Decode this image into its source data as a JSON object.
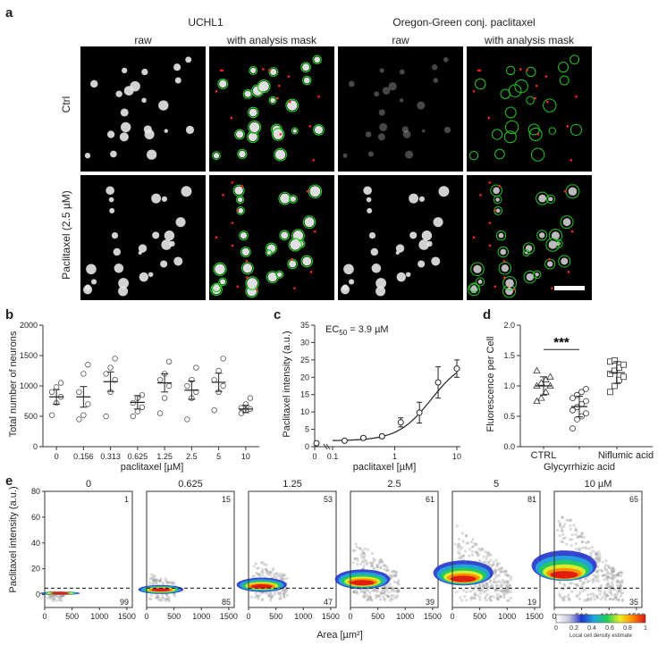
{
  "panel_labels": {
    "a": "a",
    "b": "b",
    "c": "c",
    "d": "d",
    "e": "e"
  },
  "panel_a": {
    "group_headers": [
      "UCHL1",
      "Oregon-Green conj. paclitaxel"
    ],
    "column_headers": [
      "raw",
      "with analysis mask",
      "raw",
      "with analysis mask"
    ],
    "row_labels": [
      "Ctrl",
      "Paclitaxel (2.5 µM)"
    ]
  },
  "chart_data": [
    {
      "id": "b",
      "type": "scatter",
      "ylabel": "Total number of neurons",
      "xlabel": "paclitaxel [µM]",
      "categories": [
        "0",
        "0.156",
        "0.313",
        "0.625",
        "1.25",
        "2.5",
        "5",
        "10"
      ],
      "ylim": [
        0,
        2000
      ],
      "yticks": [
        "0",
        "500",
        "1000",
        "1500",
        "2000"
      ],
      "points": [
        [
          520,
          720,
          820,
          900,
          980,
          1050
        ],
        [
          450,
          520,
          700,
          900,
          1200,
          1350
        ],
        [
          500,
          900,
          1100,
          1200,
          1300,
          1450
        ],
        [
          500,
          580,
          650,
          720,
          800,
          850
        ],
        [
          550,
          800,
          1000,
          1100,
          1200,
          1400
        ],
        [
          450,
          800,
          900,
          1000,
          1100,
          1300
        ],
        [
          600,
          900,
          1000,
          1100,
          1250,
          1450
        ],
        [
          550,
          600,
          620,
          640,
          700,
          800
        ]
      ],
      "mean": [
        820,
        820,
        1070,
        730,
        1050,
        930,
        1060,
        620
      ],
      "sem": [
        120,
        170,
        160,
        110,
        150,
        150,
        150,
        60
      ]
    },
    {
      "id": "c",
      "type": "line",
      "annotation_text": "EC",
      "annotation_sub": "50",
      "annotation_value": " = 3.9 µM",
      "ylabel": "Paclitaxel intensity (a.u.)",
      "xlabel": "paclitaxel [µM]",
      "xscale": "log",
      "xticks": [
        "0",
        "0.1",
        "1",
        "10"
      ],
      "ylim": [
        0,
        35
      ],
      "yticks": [
        "0",
        "5",
        "10",
        "15",
        "20",
        "25",
        "30",
        "35"
      ],
      "x": [
        0.156,
        0.313,
        0.625,
        1.25,
        2.5,
        5,
        10
      ],
      "y": [
        1.7,
        2.5,
        3.0,
        7.0,
        9.8,
        18.5,
        22.5
      ],
      "err": [
        0.3,
        0.5,
        0.5,
        1.3,
        3.0,
        4.5,
        2.5
      ],
      "zero_point": {
        "y": 1.0,
        "err": 0.3
      }
    },
    {
      "id": "d",
      "type": "scatter",
      "ylabel": "Fluorescence per Cell",
      "categories": [
        "CTRL",
        "Glycyrrhizic acid",
        "Niflumic acid"
      ],
      "ylim": [
        0,
        2.0
      ],
      "yticks": [
        "0.0",
        "0.5",
        "1.0",
        "1.5",
        "2.0"
      ],
      "significance": "***",
      "points": [
        [
          0.75,
          0.8,
          0.9,
          1.0,
          1.0,
          1.05,
          1.1,
          1.15,
          1.25
        ],
        [
          0.3,
          0.45,
          0.5,
          0.55,
          0.6,
          0.65,
          0.7,
          0.75,
          0.8,
          0.85,
          0.9,
          0.95
        ],
        [
          0.9,
          1.0,
          1.1,
          1.15,
          1.2,
          1.25,
          1.3,
          1.35,
          1.4,
          1.42
        ]
      ],
      "mean": [
        1.0,
        0.66,
        1.22
      ],
      "sd": [
        0.15,
        0.17,
        0.18
      ],
      "markers": [
        "triangle",
        "circle",
        "square"
      ]
    },
    {
      "id": "e",
      "type": "heatmap",
      "ylabel": "Paclitaxel intensity (a.u.)",
      "xlabel": "Area [µm²]",
      "xticks": [
        "0",
        "500",
        "1000",
        "1500"
      ],
      "yticks": [
        "0",
        "20",
        "40",
        "60",
        "80"
      ],
      "ylim": [
        -10,
        80
      ],
      "xlim": [
        0,
        1600
      ],
      "threshold": 5,
      "titles": [
        "0",
        "0.625",
        "1.25",
        "2.5",
        "5",
        "10 µM"
      ],
      "above_percent": [
        "1",
        "15",
        "53",
        "61",
        "81",
        "65"
      ],
      "below_percent": [
        "99",
        "85",
        "47",
        "39",
        "19",
        "35"
      ],
      "colorbar_ticks": [
        "0",
        "0.2",
        "0.4",
        "0.6",
        "0.8",
        "1"
      ],
      "colorbar_label": "Local cell density estimate",
      "colorbar_colors": [
        "#ffffff",
        "#c8c8d8",
        "#2233cc",
        "#22aadd",
        "#22cc55",
        "#eeee22",
        "#ff8800",
        "#dd1111"
      ]
    }
  ]
}
